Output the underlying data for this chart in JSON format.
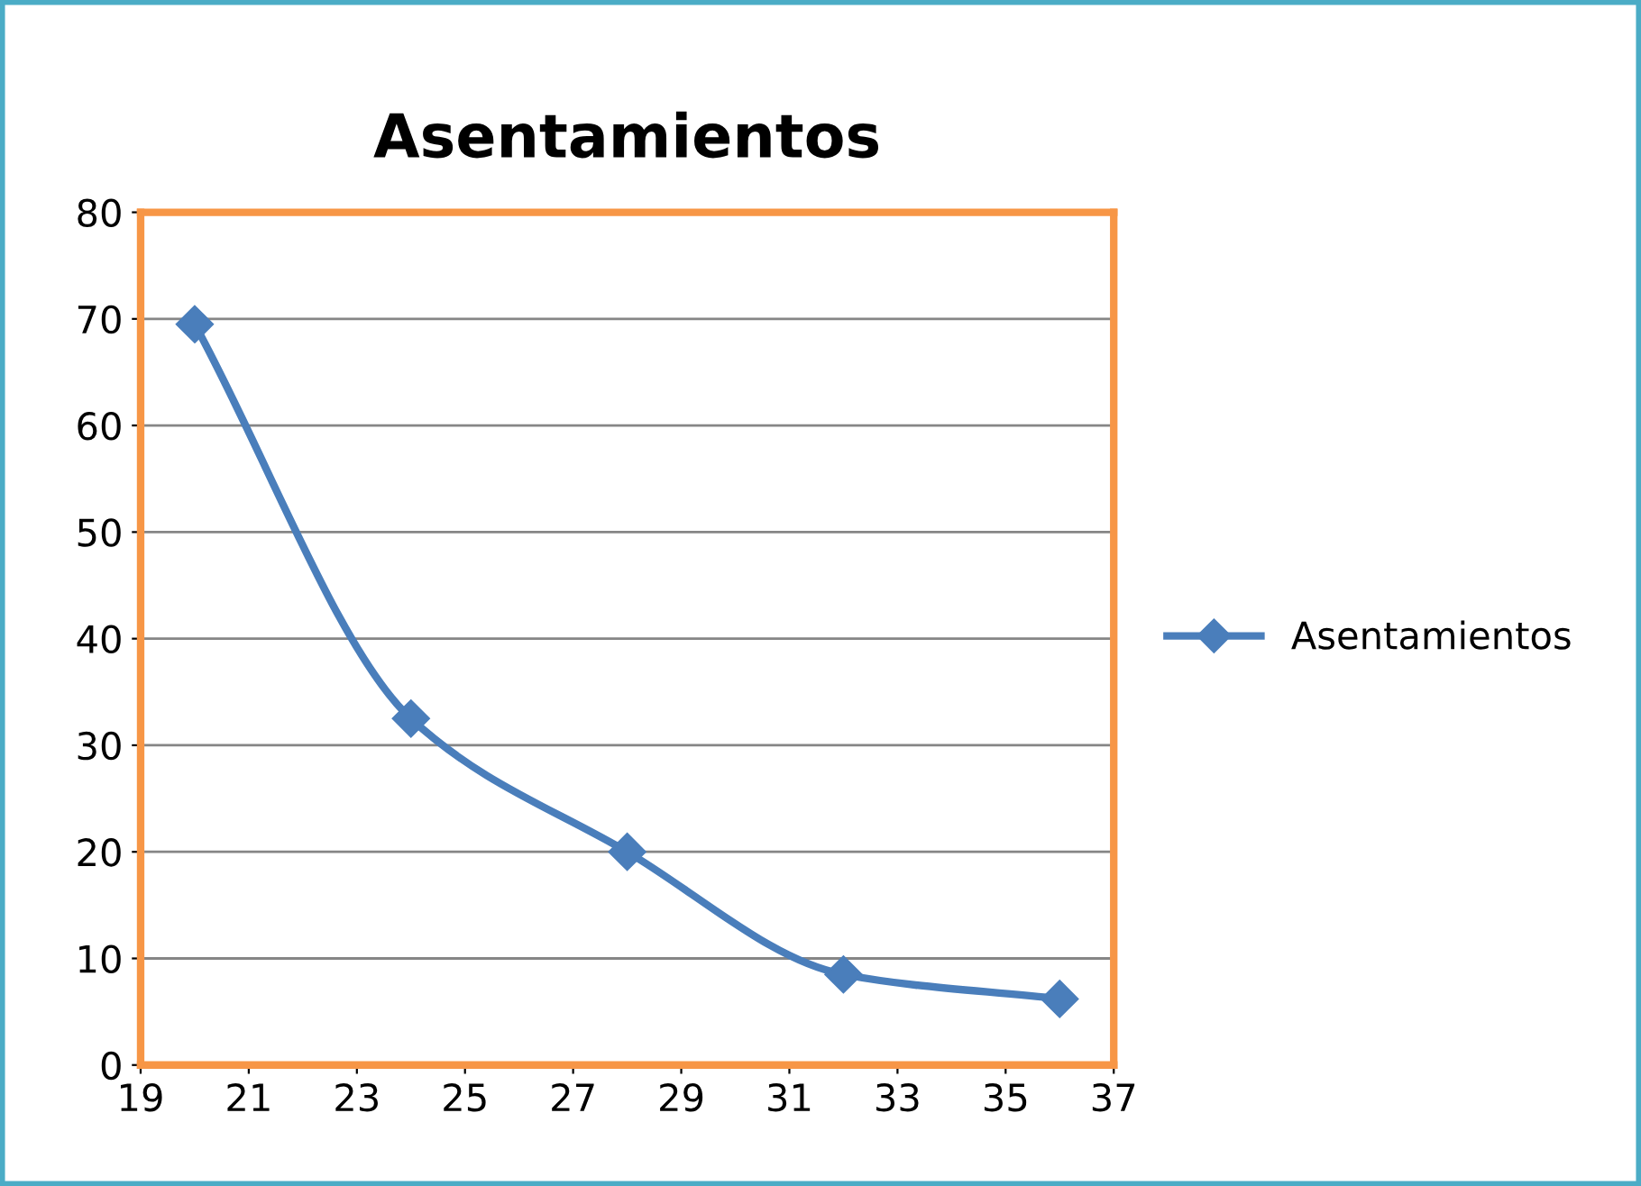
{
  "chart_data": {
    "type": "line",
    "title": "Asentamientos",
    "x": [
      20,
      24,
      28,
      32,
      36
    ],
    "series": [
      {
        "name": "Asentamientos",
        "color": "#4a7ebb",
        "values": [
          69.5,
          32.5,
          20,
          8.5,
          6.2
        ]
      }
    ],
    "xlim": [
      19,
      37
    ],
    "xticks": [
      19,
      21,
      23,
      25,
      27,
      29,
      31,
      33,
      35,
      37
    ],
    "ylim": [
      0,
      80
    ],
    "yticks": [
      0,
      10,
      20,
      30,
      40,
      50,
      60,
      70,
      80
    ],
    "grid": "y",
    "legend": "right",
    "marker": "diamond",
    "line_style": "solid"
  }
}
